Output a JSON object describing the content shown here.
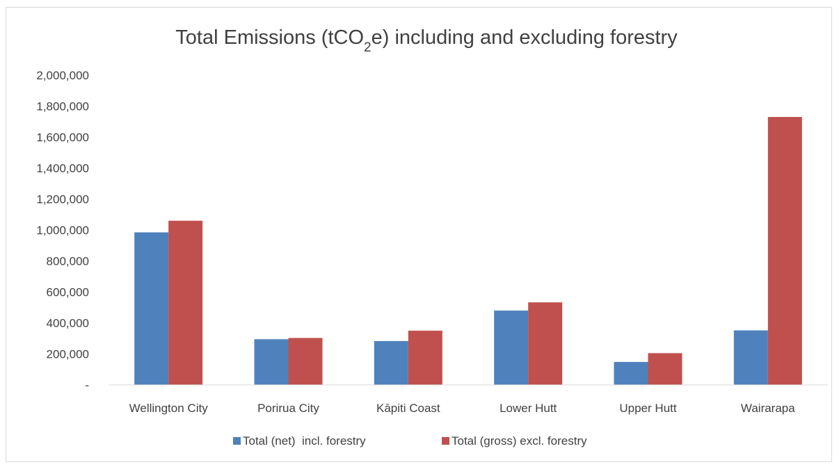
{
  "chart_data": {
    "type": "bar",
    "title": {
      "prefix": "Total Emissions (tCO",
      "subscript": "2",
      "suffix": "e) including and excluding forestry"
    },
    "xlabel": "",
    "ylabel": "",
    "categories": [
      "Wellington City",
      "Porirua City",
      "Kāpiti Coast",
      "Lower Hutt",
      "Upper Hutt",
      "Wairarapa"
    ],
    "series": [
      {
        "name": "Total (net)  incl. forestry",
        "color": "#4f81bd",
        "values": [
          985000,
          295000,
          283000,
          480000,
          148000,
          352000
        ]
      },
      {
        "name": "Total (gross) excl. forestry",
        "color": "#c0504d",
        "values": [
          1060000,
          303000,
          350000,
          533000,
          205000,
          1730000
        ]
      }
    ],
    "ylim": [
      0,
      2000000
    ],
    "ytick_values": [
      0,
      200000,
      400000,
      600000,
      800000,
      1000000,
      1200000,
      1400000,
      1600000,
      1800000,
      2000000
    ],
    "ytick_labels": [
      "-",
      "200,000",
      "400,000",
      "600,000",
      "800,000",
      "1,000,000",
      "1,200,000",
      "1,400,000",
      "1,600,000",
      "1,800,000",
      "2,000,000"
    ],
    "grid": false,
    "legend_position": "bottom",
    "axis_color": "#d9d9d9",
    "text_color": "#404040"
  }
}
